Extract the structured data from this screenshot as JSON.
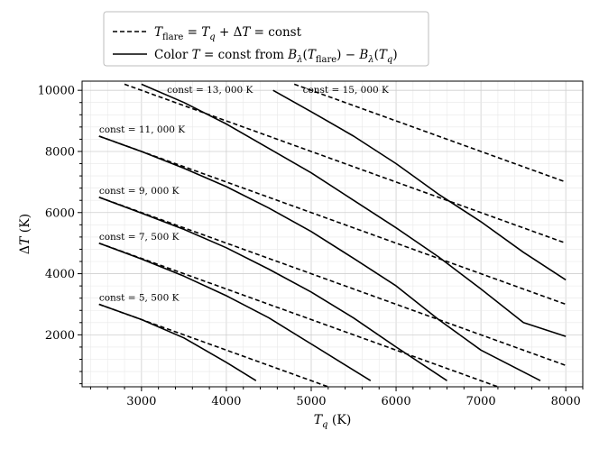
{
  "chart_data": {
    "type": "line",
    "xlabel": "T_q (K)",
    "ylabel": "ΔT (K)",
    "xlim": [
      2300,
      8200
    ],
    "ylim": [
      300,
      10300
    ],
    "xticks": [
      3000,
      4000,
      5000,
      6000,
      7000,
      8000
    ],
    "yticks": [
      2000,
      4000,
      6000,
      8000,
      10000
    ],
    "grid": true,
    "legend": {
      "placement": "top-center",
      "entries": [
        {
          "style": "dashed",
          "label": "T_flare = T_q + ΔT = const"
        },
        {
          "style": "solid",
          "label": "Color T = const from B_λ(T_flare) − B_λ(T_q)"
        }
      ]
    },
    "dashed_series": [
      {
        "const": 5500,
        "x": [
          2500,
          5200
        ],
        "y": [
          3000,
          300
        ]
      },
      {
        "const": 7500,
        "x": [
          2500,
          7200
        ],
        "y": [
          5000,
          300
        ]
      },
      {
        "const": 9000,
        "x": [
          2500,
          8000
        ],
        "y": [
          6500,
          1000
        ]
      },
      {
        "const": 11000,
        "x": [
          2500,
          8000
        ],
        "y": [
          8500,
          3000
        ]
      },
      {
        "const": 13000,
        "x": [
          2800,
          8000
        ],
        "y": [
          10200,
          5000
        ]
      },
      {
        "const": 15000,
        "x": [
          4800,
          8000
        ],
        "y": [
          10200,
          7000
        ]
      }
    ],
    "solid_series": [
      {
        "const": 5500,
        "x": [
          2500,
          3000,
          3500,
          4000,
          4350
        ],
        "y": [
          3000,
          2500,
          1900,
          1100,
          500
        ]
      },
      {
        "const": 7500,
        "x": [
          2500,
          3000,
          3500,
          4000,
          4500,
          5000,
          5700
        ],
        "y": [
          5000,
          4480,
          3920,
          3280,
          2560,
          1700,
          500
        ]
      },
      {
        "const": 9000,
        "x": [
          2500,
          3000,
          3500,
          4000,
          4500,
          5000,
          5500,
          6000,
          6600
        ],
        "y": [
          6500,
          5980,
          5450,
          4850,
          4150,
          3400,
          2550,
          1600,
          500
        ]
      },
      {
        "const": 11000,
        "x": [
          2500,
          3000,
          3500,
          4000,
          4500,
          5000,
          5500,
          6000,
          6500,
          7000,
          7700
        ],
        "y": [
          8500,
          8000,
          7450,
          6850,
          6150,
          5380,
          4500,
          3600,
          2500,
          1500,
          500
        ]
      },
      {
        "const": 13000,
        "x": [
          3000,
          3500,
          4000,
          4500,
          5000,
          5500,
          6000,
          6500,
          7000,
          7500,
          8000
        ],
        "y": [
          10200,
          9600,
          8900,
          8100,
          7300,
          6400,
          5500,
          4550,
          3500,
          2400,
          1950
        ]
      },
      {
        "const": 15000,
        "x": [
          4550,
          5000,
          5500,
          6000,
          6500,
          7000,
          7500,
          8000
        ],
        "y": [
          10000,
          9300,
          8500,
          7600,
          6600,
          5700,
          4700,
          3800
        ]
      }
    ],
    "annotations": [
      {
        "text": "const = 13, 000 K",
        "x": 3300,
        "y": 10000
      },
      {
        "text": "const = 15, 000 K",
        "x": 4900,
        "y": 10000
      },
      {
        "text": "const = 11, 000 K",
        "x": 2500,
        "y": 8700
      },
      {
        "text": "const = 9, 000 K",
        "x": 2500,
        "y": 6700
      },
      {
        "text": "const = 7, 500 K",
        "x": 2500,
        "y": 5200
      },
      {
        "text": "const = 5, 500 K",
        "x": 2500,
        "y": 3200
      }
    ]
  }
}
